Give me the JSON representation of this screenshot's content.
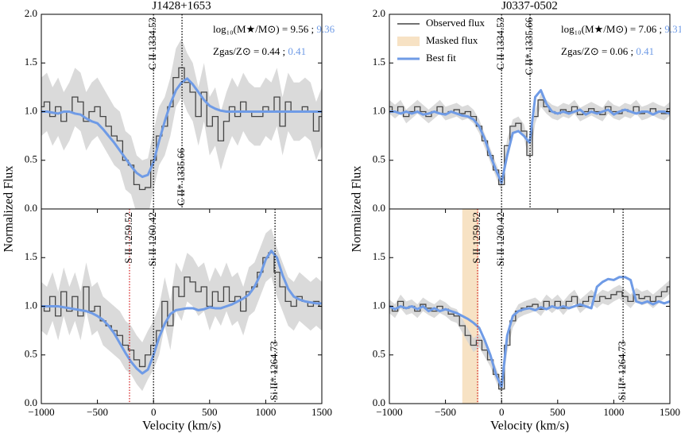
{
  "chart_data": [
    {
      "type": "line",
      "title": "J1428+1653",
      "ylabel": "Normalized Flux",
      "xlim": [
        -1000,
        1500
      ],
      "ylim": [
        0,
        2
      ],
      "yticks": [
        {
          "value": 0,
          "label": "0.0"
        },
        0.5,
        {
          "value": 1,
          "label": "1.0"
        },
        1.5,
        {
          "value": 2,
          "label": "2.0"
        }
      ],
      "annotations": [
        {
          "text": "log₁₀(M★/M⊙) = 9.56 ; ",
          "fit": "9.36"
        },
        {
          "text": "Zgas/Z⊙ = 0.44 ; ",
          "fit": "0.41"
        }
      ],
      "vlines": [
        {
          "x": 0,
          "label": "C II 1334.53",
          "color": "#000000",
          "label_pos": "top"
        },
        {
          "x": 254,
          "label": "C II* 1335.66",
          "color": "#000000",
          "label_pos": "bottom"
        }
      ],
      "error": 0.3,
      "x": [
        -1000,
        -950,
        -900,
        -850,
        -800,
        -750,
        -700,
        -650,
        -600,
        -550,
        -500,
        -450,
        -400,
        -350,
        -300,
        -250,
        -200,
        -150,
        -100,
        -50,
        0,
        50,
        100,
        150,
        200,
        250,
        300,
        350,
        400,
        450,
        500,
        550,
        600,
        650,
        700,
        750,
        800,
        850,
        900,
        950,
        1000,
        1050,
        1100,
        1150,
        1200,
        1250,
        1300,
        1350,
        1400,
        1450,
        1500
      ],
      "series": [
        {
          "color": "#444444",
          "values": [
            1.05,
            1.1,
            0.95,
            1.05,
            0.9,
            1.0,
            1.15,
            1.1,
            0.9,
            1.0,
            1.05,
            0.95,
            0.85,
            0.75,
            0.7,
            0.5,
            0.45,
            0.25,
            0.2,
            0.22,
            0.5,
            0.75,
            0.85,
            1.05,
            1.35,
            1.45,
            1.3,
            1.2,
            0.95,
            1.2,
            0.85,
            0.95,
            0.7,
            0.9,
            1.05,
            0.95,
            1.1,
            1.0,
            0.95,
            0.95,
            1.05,
            1.0,
            1.15,
            0.85,
            1.1,
            1.0,
            1.0,
            1.05,
            1.0,
            0.8,
            0.95
          ]
        },
        {
          "color": "#6f9be6",
          "values": [
            1.0,
            1.0,
            0.99,
            0.98,
            1.0,
            1.0,
            0.98,
            0.97,
            0.93,
            0.9,
            0.88,
            0.82,
            0.75,
            0.68,
            0.6,
            0.52,
            0.44,
            0.37,
            0.33,
            0.35,
            0.48,
            0.7,
            0.9,
            1.08,
            1.22,
            1.3,
            1.34,
            1.28,
            1.2,
            1.12,
            1.06,
            1.03,
            1.01,
            1.0,
            1.0,
            1.0,
            1.0,
            1.0,
            1.0,
            1.0,
            1.0,
            1.0,
            1.0,
            1.0,
            1.0,
            1.0,
            1.0,
            1.0,
            1.0,
            1.0,
            1.0
          ]
        }
      ]
    },
    {
      "type": "line",
      "title": "J0337-0502",
      "ylabel": "Normalized Flux",
      "legend": "upper left",
      "xlim": [
        -1000,
        1500
      ],
      "ylim": [
        0,
        2
      ],
      "yticks": [
        {
          "value": 0,
          "label": "0.0"
        },
        0.5,
        {
          "value": 1,
          "label": "1.0"
        },
        1.5,
        {
          "value": 2,
          "label": "2.0"
        }
      ],
      "annotations": [
        {
          "text": "log₁₀(M★/M⊙) = 7.06 ; ",
          "fit": "9.31"
        },
        {
          "text": "Zgas/Z⊙ = 0.06 ; ",
          "fit": "0.41"
        }
      ],
      "vlines": [
        {
          "x": 0,
          "label": "C II 1334.53",
          "color": "#000000",
          "label_pos": "top"
        },
        {
          "x": 254,
          "label": "C II* 1335.66",
          "color": "#000000",
          "label_pos": "top"
        }
      ],
      "error": 0.07,
      "x": [
        -1000,
        -950,
        -900,
        -850,
        -800,
        -750,
        -700,
        -650,
        -600,
        -550,
        -500,
        -450,
        -400,
        -350,
        -300,
        -250,
        -200,
        -150,
        -100,
        -50,
        0,
        50,
        100,
        150,
        200,
        250,
        300,
        350,
        400,
        450,
        500,
        550,
        600,
        650,
        700,
        750,
        800,
        850,
        900,
        950,
        1000,
        1050,
        1100,
        1150,
        1200,
        1250,
        1300,
        1350,
        1400,
        1450,
        1500
      ],
      "series": [
        {
          "name": "Observed flux",
          "color": "#444444",
          "values": [
            1.05,
            1.0,
            1.05,
            0.95,
            1.0,
            1.05,
            1.0,
            0.95,
            1.0,
            1.05,
            0.98,
            1.0,
            1.02,
            0.98,
            1.0,
            0.95,
            0.85,
            0.7,
            0.55,
            0.4,
            0.25,
            0.65,
            0.85,
            0.88,
            0.8,
            0.55,
            0.95,
            1.12,
            1.05,
            1.0,
            0.98,
            1.02,
            1.0,
            1.05,
            0.97,
            1.0,
            1.03,
            1.0,
            0.97,
            1.05,
            1.0,
            0.98,
            1.02,
            1.0,
            1.05,
            0.98,
            1.0,
            1.03,
            1.0,
            0.98,
            1.03
          ]
        },
        {
          "name": "Best fit",
          "color": "#6f9be6",
          "values": [
            1.0,
            1.0,
            0.98,
            1.0,
            0.98,
            1.0,
            0.97,
            0.98,
            1.0,
            0.98,
            0.97,
            1.0,
            0.98,
            0.96,
            0.95,
            0.92,
            0.85,
            0.72,
            0.55,
            0.4,
            0.27,
            0.55,
            0.78,
            0.8,
            0.75,
            0.68,
            1.15,
            1.22,
            1.08,
            1.0,
            0.98,
            1.0,
            0.98,
            1.0,
            1.02,
            0.97,
            1.0,
            0.98,
            1.0,
            1.02,
            0.97,
            1.0,
            1.02,
            1.0,
            0.98,
            1.0,
            1.0,
            0.97,
            1.0,
            1.0,
            0.98
          ]
        }
      ]
    },
    {
      "type": "line",
      "xlabel": "Velocity (km/s)",
      "xlim": [
        -1000,
        1500
      ],
      "ylim": [
        0,
        2
      ],
      "xticks": [
        {
          "value": -1000,
          "label": "−1000"
        },
        {
          "value": -500,
          "label": "−500"
        },
        0,
        500,
        1000,
        1500
      ],
      "yticks": [
        {
          "value": 0,
          "label": "0.0"
        },
        0.5,
        {
          "value": 1,
          "label": "1.0"
        },
        1.5
      ],
      "vlines": [
        {
          "x": -214,
          "label": "S II 1259.52",
          "color": "#d62728",
          "label_pos": "top"
        },
        {
          "x": 0,
          "label": "Si II 1260.42",
          "color": "#000000",
          "label_pos": "top"
        },
        {
          "x": 1083,
          "label": "Si II* 1264.73",
          "color": "#000000",
          "label_pos": "bottom"
        }
      ],
      "error": 0.25,
      "x": [
        -1000,
        -950,
        -900,
        -850,
        -800,
        -750,
        -700,
        -650,
        -600,
        -550,
        -500,
        -450,
        -400,
        -350,
        -300,
        -250,
        -200,
        -150,
        -100,
        -50,
        0,
        50,
        100,
        150,
        200,
        250,
        300,
        350,
        400,
        450,
        500,
        550,
        600,
        650,
        700,
        750,
        800,
        850,
        900,
        950,
        1000,
        1050,
        1100,
        1150,
        1200,
        1250,
        1300,
        1350,
        1400,
        1450,
        1500
      ],
      "series": [
        {
          "color": "#444444",
          "values": [
            1.0,
            0.95,
            1.1,
            0.9,
            1.15,
            0.95,
            1.1,
            0.9,
            1.2,
            0.95,
            1.0,
            0.85,
            0.8,
            0.75,
            0.7,
            0.6,
            0.55,
            0.45,
            0.38,
            0.5,
            0.6,
            0.75,
            1.05,
            0.8,
            1.2,
            1.1,
            1.3,
            1.25,
            1.15,
            1.2,
            1.0,
            1.15,
            1.05,
            1.2,
            1.05,
            1.1,
            0.95,
            1.15,
            1.2,
            1.35,
            1.5,
            1.55,
            1.35,
            1.2,
            1.05,
            1.0,
            1.1,
            1.05,
            1.0,
            1.05,
            1.0
          ]
        },
        {
          "color": "#6f9be6",
          "values": [
            1.0,
            1.0,
            1.0,
            1.0,
            0.99,
            0.98,
            0.97,
            0.96,
            0.95,
            0.93,
            0.9,
            0.86,
            0.8,
            0.72,
            0.62,
            0.52,
            0.43,
            0.36,
            0.31,
            0.35,
            0.5,
            0.68,
            0.82,
            0.92,
            0.96,
            0.97,
            0.98,
            0.98,
            0.96,
            0.97,
            0.99,
            0.98,
            0.98,
            1.0,
            1.02,
            1.05,
            1.08,
            1.12,
            1.2,
            1.32,
            1.48,
            1.57,
            1.5,
            1.32,
            1.18,
            1.1,
            1.07,
            1.05,
            1.04,
            1.03,
            1.03
          ]
        }
      ]
    },
    {
      "type": "line",
      "xlabel": "Velocity (km/s)",
      "xlim": [
        -1000,
        1500
      ],
      "ylim": [
        0,
        2
      ],
      "xticks": [
        {
          "value": -1000,
          "label": "−1000"
        },
        {
          "value": -500,
          "label": "−500"
        },
        0,
        500,
        1000,
        1500
      ],
      "yticks": [
        {
          "value": 0,
          "label": "0.0"
        },
        0.5,
        {
          "value": 1,
          "label": "1.0"
        },
        1.5
      ],
      "masked": {
        "name": "Masked flux",
        "range": [
          -350,
          -205
        ],
        "color": "#f7e2c4"
      },
      "vlines": [
        {
          "x": -214,
          "label": "S II 1259.52",
          "color": "#d62728",
          "label_pos": "top"
        },
        {
          "x": 0,
          "label": "Si II 1260.42",
          "color": "#000000",
          "label_pos": "top"
        },
        {
          "x": 1083,
          "label": "Si II* 1264.73",
          "color": "#000000",
          "label_pos": "bottom"
        }
      ],
      "error": 0.07,
      "x": [
        -1000,
        -950,
        -900,
        -850,
        -800,
        -750,
        -700,
        -650,
        -600,
        -550,
        -500,
        -450,
        -400,
        -350,
        -300,
        -250,
        -200,
        -150,
        -100,
        -50,
        0,
        50,
        100,
        150,
        200,
        250,
        300,
        350,
        400,
        450,
        500,
        550,
        600,
        650,
        700,
        750,
        800,
        850,
        900,
        950,
        1000,
        1050,
        1100,
        1150,
        1200,
        1250,
        1300,
        1350,
        1400,
        1450,
        1500
      ],
      "series": [
        {
          "color": "#444444",
          "values": [
            1.0,
            0.95,
            1.05,
            0.98,
            1.0,
            0.95,
            1.02,
            0.98,
            0.95,
            1.0,
            0.97,
            0.92,
            0.9,
            0.8,
            0.7,
            0.6,
            0.65,
            0.55,
            0.45,
            0.3,
            0.15,
            0.6,
            0.85,
            0.95,
            0.98,
            1.0,
            1.02,
            0.97,
            1.05,
            1.0,
            1.05,
            0.98,
            1.05,
            1.1,
            1.0,
            1.05,
            1.1,
            1.05,
            1.1,
            1.08,
            1.12,
            1.15,
            1.1,
            1.05,
            1.12,
            1.08,
            1.1,
            1.05,
            1.1,
            1.15,
            1.2
          ]
        },
        {
          "color": "#6f9be6",
          "values": [
            1.0,
            0.97,
            1.0,
            0.98,
            1.0,
            0.97,
            1.0,
            0.95,
            0.98,
            0.95,
            0.97,
            0.95,
            0.93,
            0.9,
            0.87,
            0.83,
            0.78,
            0.65,
            0.5,
            0.3,
            0.17,
            0.7,
            0.9,
            0.95,
            0.97,
            0.98,
            0.96,
            0.99,
            0.97,
            1.0,
            0.98,
            1.0,
            0.98,
            1.0,
            1.02,
            1.0,
            0.98,
            1.2,
            1.25,
            1.28,
            1.27,
            1.3,
            1.3,
            1.27,
            1.05,
            1.03,
            1.05,
            1.02,
            1.05,
            1.03,
            1.05
          ]
        }
      ]
    }
  ]
}
